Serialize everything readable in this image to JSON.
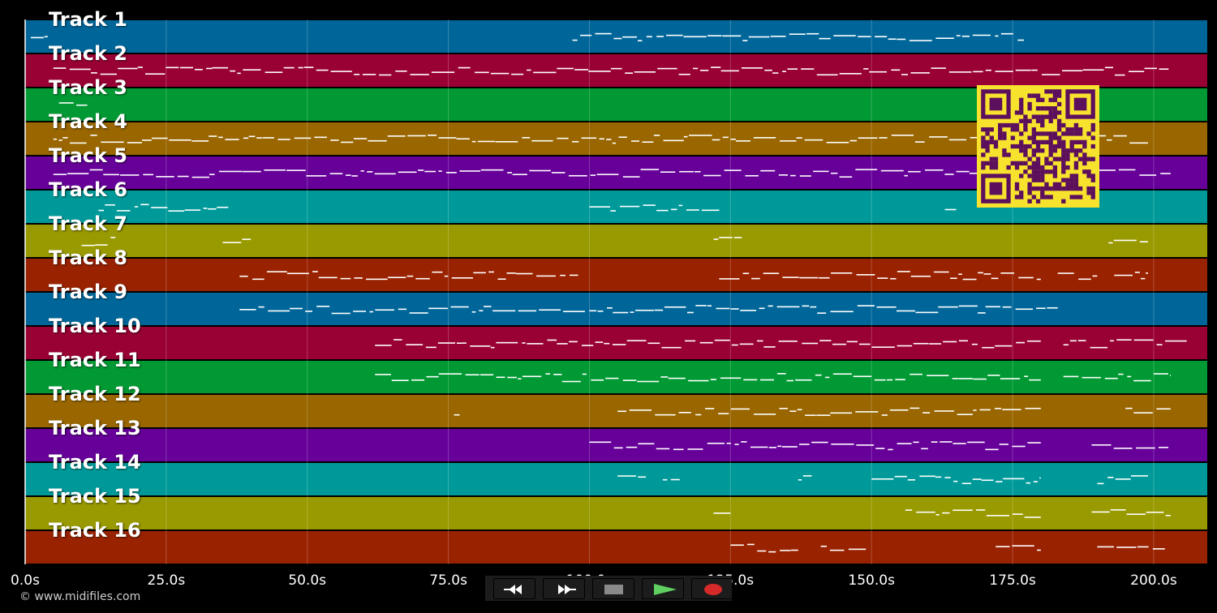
{
  "app": {
    "copyright": "© www.midifiles.com"
  },
  "colors": {
    "background": "#000000",
    "track_colors": [
      "#006699",
      "#990033",
      "#009933",
      "#996600",
      "#660099",
      "#009999",
      "#999900",
      "#992200"
    ],
    "note_color": "#ffffff",
    "qr_fg": "#5c0f5c",
    "qr_bg": "#f7e22e"
  },
  "tracks": [
    {
      "label": "Track 1",
      "color": "#006699"
    },
    {
      "label": "Track 2",
      "color": "#990033"
    },
    {
      "label": "Track 3",
      "color": "#009933"
    },
    {
      "label": "Track 4",
      "color": "#996600"
    },
    {
      "label": "Track 5",
      "color": "#660099"
    },
    {
      "label": "Track 6",
      "color": "#009999"
    },
    {
      "label": "Track 7",
      "color": "#999900"
    },
    {
      "label": "Track 8",
      "color": "#992200"
    },
    {
      "label": "Track 9",
      "color": "#006699"
    },
    {
      "label": "Track 10",
      "color": "#990033"
    },
    {
      "label": "Track 11",
      "color": "#009933"
    },
    {
      "label": "Track 12",
      "color": "#996600"
    },
    {
      "label": "Track 13",
      "color": "#660099"
    },
    {
      "label": "Track 14",
      "color": "#009999"
    },
    {
      "label": "Track 15",
      "color": "#999900"
    },
    {
      "label": "Track 16",
      "color": "#992200"
    }
  ],
  "timeline": {
    "ticks": [
      {
        "value": 0,
        "label": "0.0s"
      },
      {
        "value": 25,
        "label": "25.0s"
      },
      {
        "value": 50,
        "label": "50.0s"
      },
      {
        "value": 75,
        "label": "75.0s"
      },
      {
        "value": 100,
        "label": "100.0s"
      },
      {
        "value": 125,
        "label": "125.0s"
      },
      {
        "value": 150,
        "label": "150.0s"
      },
      {
        "value": 175,
        "label": "175.0s"
      },
      {
        "value": 200,
        "label": "200.0s"
      }
    ],
    "range": [
      0,
      209.5
    ],
    "playhead": 0
  },
  "transport": {
    "buttons": [
      {
        "name": "rewind-button",
        "icon": "rewind-icon",
        "color": "#111111"
      },
      {
        "name": "fast-forward-button",
        "icon": "fast-forward-icon",
        "color": "#111111"
      },
      {
        "name": "stop-button",
        "icon": "stop-icon",
        "color": "#3a3a3a"
      },
      {
        "name": "play-button",
        "icon": "play-icon",
        "color": "#1f4f1f"
      },
      {
        "name": "record-button",
        "icon": "record-icon",
        "color": "#4a1515"
      }
    ]
  },
  "qr_code": {
    "icon": "qr-code-icon"
  }
}
